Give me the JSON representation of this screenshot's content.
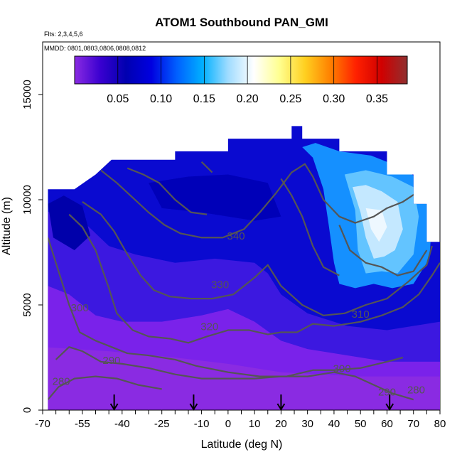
{
  "chart_data": {
    "type": "heatmap",
    "title": "ATOM1 Southbound PAN_GMI",
    "flights_note": "Flts: 2,3,4,5,6",
    "dates_note": "MMDD: 0801,0803,0806,0808,0812",
    "xlabel": "Latitude (deg N)",
    "ylabel": "Altitude (m)",
    "xlim": [
      -70,
      80
    ],
    "ylim": [
      0,
      17500
    ],
    "x_ticks": [
      -70,
      -55,
      -40,
      -25,
      -10,
      0,
      10,
      20,
      30,
      40,
      50,
      60,
      70,
      80
    ],
    "y_ticks": [
      0,
      5000,
      10000,
      15000
    ],
    "colorbar": {
      "range": [
        0.0,
        0.385
      ],
      "ticks": [
        0.05,
        0.1,
        0.15,
        0.2,
        0.25,
        0.3,
        0.35
      ],
      "tick_labels": [
        "0.05",
        "0.10",
        "0.15",
        "0.20",
        "0.25",
        "0.30",
        "0.35"
      ],
      "colors": [
        "#8a2be2",
        "#3a00d0",
        "#0000b0",
        "#0000e0",
        "#0060ff",
        "#00b0ff",
        "#a0dcff",
        "#ffffff",
        "#ffff90",
        "#ffd020",
        "#ff8000",
        "#ff2000",
        "#d00000",
        "#903030"
      ]
    },
    "data_extent": {
      "lat_min": -68,
      "lat_max": 80,
      "top_altitude": [
        [
          -68,
          10500
        ],
        [
          -58,
          10500
        ],
        [
          -50,
          11200
        ],
        [
          -44,
          11900
        ],
        [
          -20,
          11900
        ],
        [
          -20,
          12300
        ],
        [
          0,
          12300
        ],
        [
          0,
          12300
        ],
        [
          0,
          12900
        ],
        [
          24,
          12900
        ],
        [
          24,
          13500
        ],
        [
          28,
          13500
        ],
        [
          28,
          12900
        ],
        [
          42,
          12900
        ],
        [
          42,
          12300
        ],
        [
          60,
          12300
        ],
        [
          60,
          11200
        ],
        [
          70,
          11200
        ],
        [
          70,
          9800
        ],
        [
          75,
          9800
        ],
        [
          75,
          8000
        ],
        [
          80,
          8000
        ],
        [
          80,
          6000
        ]
      ]
    },
    "contours": [
      {
        "label": "280",
        "label_lat": -63,
        "label_alt": 1200
      },
      {
        "label": "290",
        "label_lat": -44,
        "label_alt": 2200
      },
      {
        "label": "300",
        "label_lat": -56,
        "label_alt": 4700
      },
      {
        "label": "310",
        "label_lat": 50,
        "label_alt": 4400
      },
      {
        "label": "320",
        "label_lat": -7,
        "label_alt": 3800
      },
      {
        "label": "330",
        "label_lat": -3,
        "label_alt": 5800
      },
      {
        "label": "340",
        "label_lat": 3,
        "label_alt": 8100
      },
      {
        "label": "300",
        "label_lat": 43,
        "label_alt": 1800
      },
      {
        "label": "290",
        "label_lat": 60,
        "label_alt": 700
      },
      {
        "label": "280",
        "label_lat": 71,
        "label_alt": 800
      }
    ],
    "arrows_lat": [
      -43,
      -13,
      20,
      61
    ]
  }
}
